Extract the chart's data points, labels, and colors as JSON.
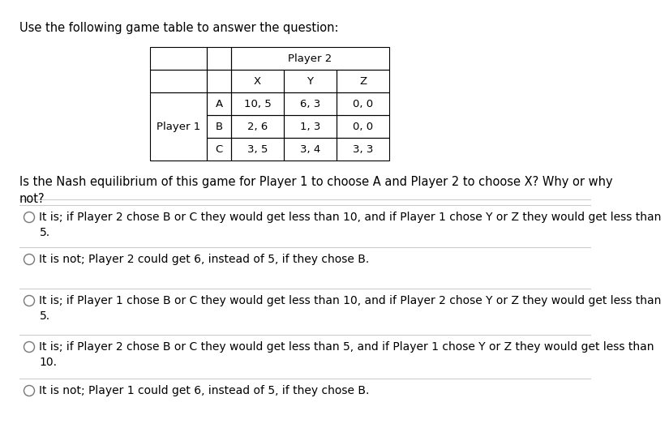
{
  "title": "Use the following game table to answer the question:",
  "table": {
    "player2_label": "Player 2",
    "player1_label": "Player 1",
    "col_headers": [
      "X",
      "Y",
      "Z"
    ],
    "row_headers": [
      "A",
      "B",
      "C"
    ],
    "cells": [
      [
        "10, 5",
        "6, 3",
        "0, 0"
      ],
      [
        "2, 6",
        "1, 3",
        "0, 0"
      ],
      [
        "3, 5",
        "3, 4",
        "3, 3"
      ]
    ]
  },
  "question": "Is the Nash equilibrium of this game for Player 1 to choose A and Player 2 to choose X? Why or why\nnot?",
  "options": [
    "It is; if Player 2 chose B or C they would get less than 10, and if Player 1 chose Y or Z they would get less than\n5.",
    "It is not; Player 2 could get 6, instead of 5, if they chose B.",
    "It is; if Player 1 chose B or C they would get less than 10, and if Player 2 chose Y or Z they would get less than\n5.",
    "It is; if Player 2 chose B or C they would get less than 5, and if Player 1 chose Y or Z they would get less than\n10.",
    "It is not; Player 1 could get 6, instead of 5, if they chose B."
  ],
  "bg_color": "#ffffff",
  "text_color": "#000000",
  "separator_color": "#cccccc",
  "border_color": "#000000",
  "circle_color": "#777777",
  "font_size_title": 10.5,
  "font_size_table": 9.5,
  "font_size_question": 10.5,
  "font_size_options": 10.0
}
